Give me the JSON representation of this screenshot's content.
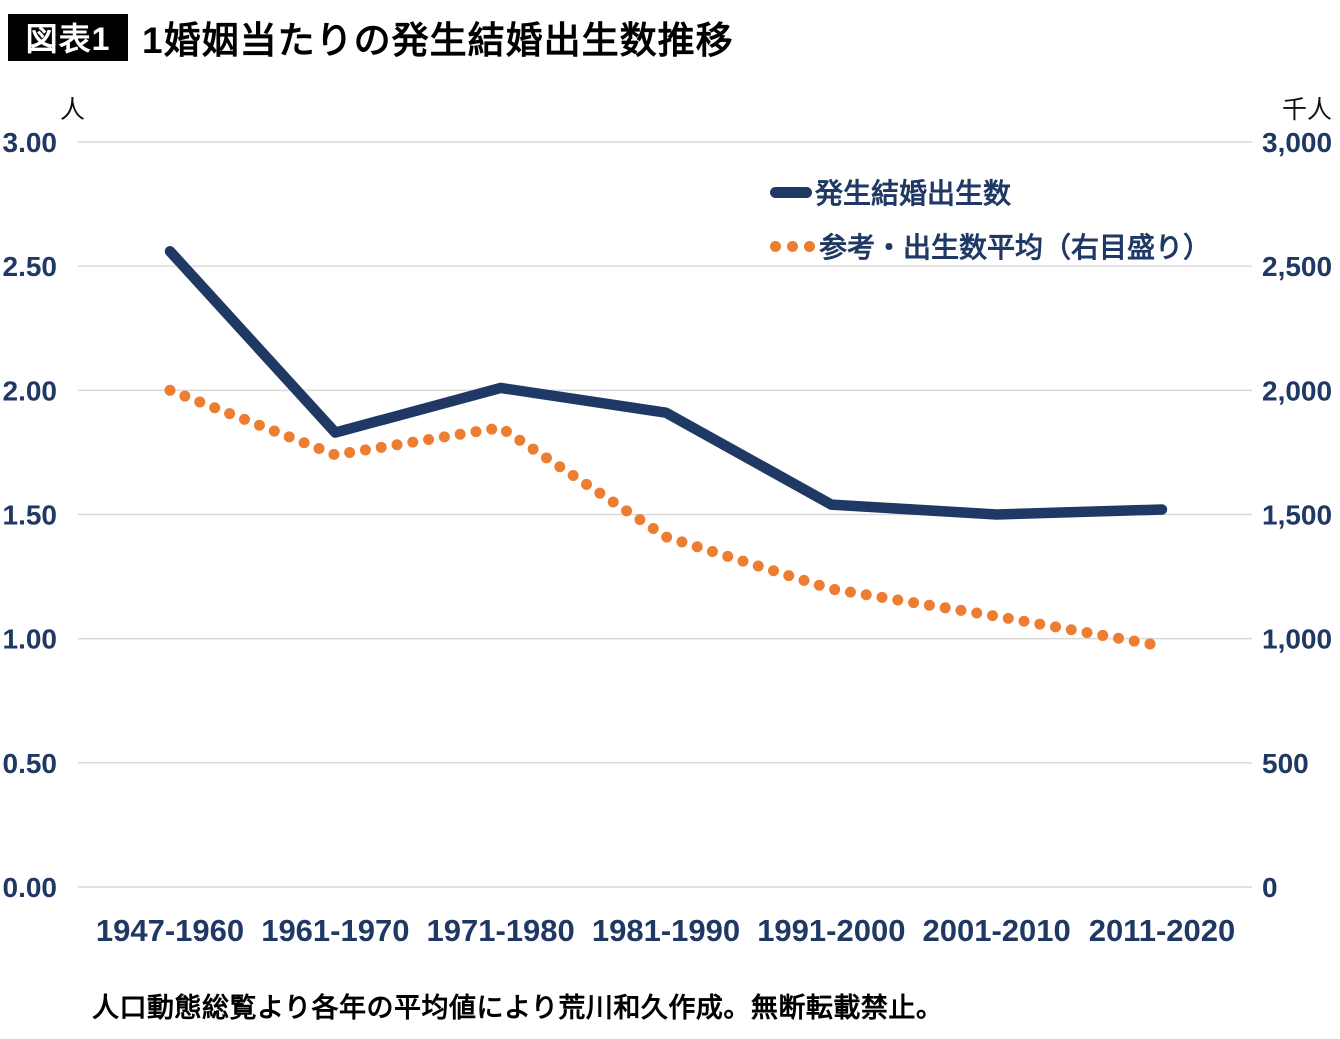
{
  "figure": {
    "badge": "図表1",
    "title": "1婚姻当たりの発生結婚出生数推移"
  },
  "chart_data": {
    "type": "line",
    "title": "1婚姻当たりの発生結婚出生数推移",
    "categories": [
      "1947-1960",
      "1961-1970",
      "1971-1980",
      "1981-1990",
      "1991-2000",
      "2001-2010",
      "2011-2020"
    ],
    "series": [
      {
        "name": "発生結婚出生数",
        "axis": "left",
        "style": "solid",
        "color": "#1f3864",
        "values": [
          2.56,
          1.83,
          2.01,
          1.91,
          1.54,
          1.5,
          1.52
        ]
      },
      {
        "name": "参考・出生数平均（右目盛り）",
        "axis": "right",
        "style": "dotted",
        "color": "#ed7d31",
        "values": [
          2000,
          1740,
          1850,
          1410,
          1200,
          1090,
          970
        ]
      }
    ],
    "left_axis": {
      "unit": "人",
      "min": 0,
      "max": 3,
      "step": 0.5,
      "tick_labels": [
        "0.00",
        "0.50",
        "1.00",
        "1.50",
        "2.00",
        "2.50",
        "3.00"
      ]
    },
    "right_axis": {
      "unit": "千人",
      "min": 0,
      "max": 3000,
      "step": 500,
      "tick_labels": [
        "0",
        "500",
        "1,000",
        "1,500",
        "2,000",
        "2,500",
        "3,000"
      ]
    },
    "grid": "horizontal",
    "legend_position": "top-right-inside"
  },
  "legend": {
    "items": [
      {
        "label": "発生結婚出生数",
        "swatch": "line",
        "color": "#1f3864"
      },
      {
        "label": "参考・出生数平均（右目盛り）",
        "swatch": "dots",
        "color": "#ed7d31"
      }
    ]
  },
  "footer": {
    "caption": "人口動態総覧より各年の平均値により荒川和久作成。無断転載禁止。"
  },
  "colors": {
    "navy": "#1f3864",
    "orange": "#ed7d31",
    "grid": "#d9d9d9",
    "text": "#000000",
    "background": "#ffffff"
  }
}
